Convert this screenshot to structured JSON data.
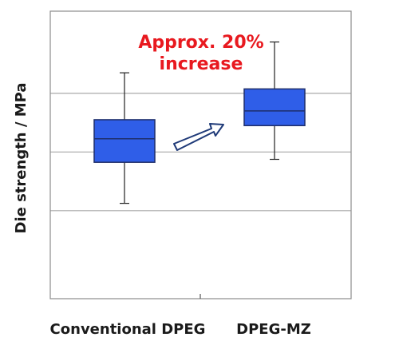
{
  "chart_data": {
    "type": "box",
    "categories": [
      "Conventional DPEG",
      "DPEG-MZ"
    ],
    "boxes": [
      {
        "category": "Conventional DPEG",
        "whisker_low": 0.25,
        "q1": 1.65,
        "median": 2.45,
        "q3": 3.1,
        "whisker_high": 4.7
      },
      {
        "category": "DPEG-MZ",
        "whisker_low": 1.75,
        "q1": 2.9,
        "median": 3.4,
        "q3": 4.15,
        "whisker_high": 5.75
      }
    ],
    "ylabel": "Die strength / MPa",
    "xlabel": "",
    "ylim": [
      -3,
      6.8
    ],
    "y_gridlines": [
      0,
      2,
      4
    ],
    "y_tick_labels_shown": false,
    "grid": "horizontal",
    "colors": {
      "box_fill": "#2f5ee8",
      "box_stroke": "#1f2f6b",
      "annotation": "#e8191f",
      "arrow_fill": "#ffffff",
      "arrow_stroke": "#1f3a78",
      "gridline": "#a8a8a8"
    },
    "annotation": {
      "lines": [
        "Approx. 20%",
        "increase"
      ]
    },
    "arrow_icon": "right-arrow-icon"
  }
}
